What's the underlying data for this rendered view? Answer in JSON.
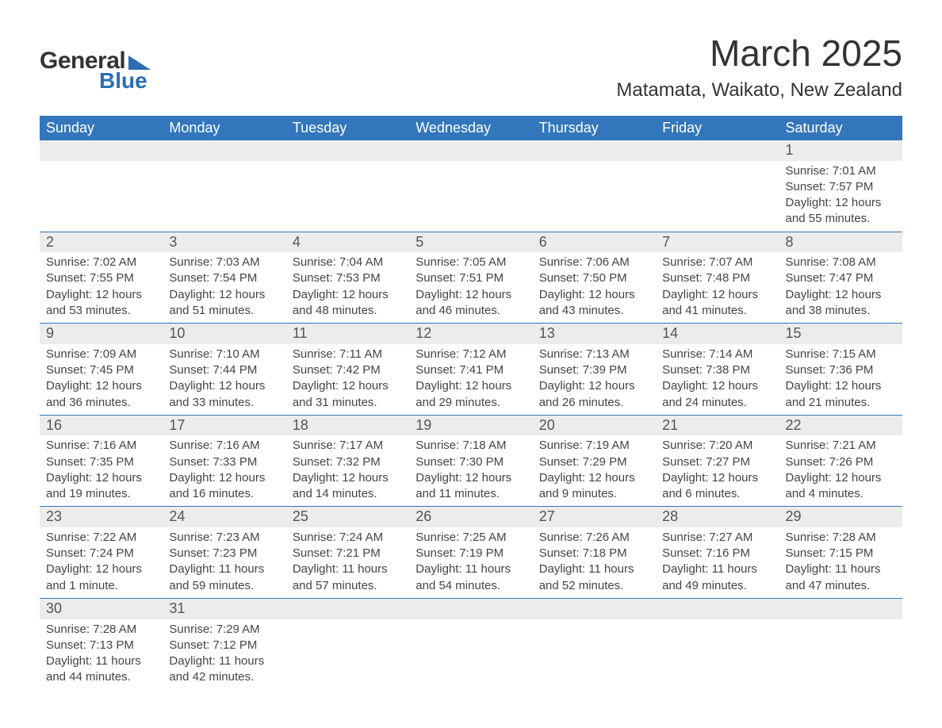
{
  "logo": {
    "text_main": "General",
    "text_sub": "Blue",
    "triangle_color": "#2a6db5"
  },
  "title": "March 2025",
  "location": "Matamata, Waikato, New Zealand",
  "colors": {
    "header_bg": "#3376bb",
    "header_text": "#ffffff",
    "daynum_bg": "#ececec",
    "row_border": "#3376bb",
    "body_text": "#444444",
    "page_bg": "#ffffff"
  },
  "typography": {
    "title_fontsize": 46,
    "location_fontsize": 24,
    "header_fontsize": 18,
    "daynum_fontsize": 18,
    "body_fontsize": 15
  },
  "weekdays": [
    "Sunday",
    "Monday",
    "Tuesday",
    "Wednesday",
    "Thursday",
    "Friday",
    "Saturday"
  ],
  "weeks": [
    [
      null,
      null,
      null,
      null,
      null,
      null,
      {
        "n": "1",
        "sunrise": "Sunrise: 7:01 AM",
        "sunset": "Sunset: 7:57 PM",
        "daylight": "Daylight: 12 hours and 55 minutes."
      }
    ],
    [
      {
        "n": "2",
        "sunrise": "Sunrise: 7:02 AM",
        "sunset": "Sunset: 7:55 PM",
        "daylight": "Daylight: 12 hours and 53 minutes."
      },
      {
        "n": "3",
        "sunrise": "Sunrise: 7:03 AM",
        "sunset": "Sunset: 7:54 PM",
        "daylight": "Daylight: 12 hours and 51 minutes."
      },
      {
        "n": "4",
        "sunrise": "Sunrise: 7:04 AM",
        "sunset": "Sunset: 7:53 PM",
        "daylight": "Daylight: 12 hours and 48 minutes."
      },
      {
        "n": "5",
        "sunrise": "Sunrise: 7:05 AM",
        "sunset": "Sunset: 7:51 PM",
        "daylight": "Daylight: 12 hours and 46 minutes."
      },
      {
        "n": "6",
        "sunrise": "Sunrise: 7:06 AM",
        "sunset": "Sunset: 7:50 PM",
        "daylight": "Daylight: 12 hours and 43 minutes."
      },
      {
        "n": "7",
        "sunrise": "Sunrise: 7:07 AM",
        "sunset": "Sunset: 7:48 PM",
        "daylight": "Daylight: 12 hours and 41 minutes."
      },
      {
        "n": "8",
        "sunrise": "Sunrise: 7:08 AM",
        "sunset": "Sunset: 7:47 PM",
        "daylight": "Daylight: 12 hours and 38 minutes."
      }
    ],
    [
      {
        "n": "9",
        "sunrise": "Sunrise: 7:09 AM",
        "sunset": "Sunset: 7:45 PM",
        "daylight": "Daylight: 12 hours and 36 minutes."
      },
      {
        "n": "10",
        "sunrise": "Sunrise: 7:10 AM",
        "sunset": "Sunset: 7:44 PM",
        "daylight": "Daylight: 12 hours and 33 minutes."
      },
      {
        "n": "11",
        "sunrise": "Sunrise: 7:11 AM",
        "sunset": "Sunset: 7:42 PM",
        "daylight": "Daylight: 12 hours and 31 minutes."
      },
      {
        "n": "12",
        "sunrise": "Sunrise: 7:12 AM",
        "sunset": "Sunset: 7:41 PM",
        "daylight": "Daylight: 12 hours and 29 minutes."
      },
      {
        "n": "13",
        "sunrise": "Sunrise: 7:13 AM",
        "sunset": "Sunset: 7:39 PM",
        "daylight": "Daylight: 12 hours and 26 minutes."
      },
      {
        "n": "14",
        "sunrise": "Sunrise: 7:14 AM",
        "sunset": "Sunset: 7:38 PM",
        "daylight": "Daylight: 12 hours and 24 minutes."
      },
      {
        "n": "15",
        "sunrise": "Sunrise: 7:15 AM",
        "sunset": "Sunset: 7:36 PM",
        "daylight": "Daylight: 12 hours and 21 minutes."
      }
    ],
    [
      {
        "n": "16",
        "sunrise": "Sunrise: 7:16 AM",
        "sunset": "Sunset: 7:35 PM",
        "daylight": "Daylight: 12 hours and 19 minutes."
      },
      {
        "n": "17",
        "sunrise": "Sunrise: 7:16 AM",
        "sunset": "Sunset: 7:33 PM",
        "daylight": "Daylight: 12 hours and 16 minutes."
      },
      {
        "n": "18",
        "sunrise": "Sunrise: 7:17 AM",
        "sunset": "Sunset: 7:32 PM",
        "daylight": "Daylight: 12 hours and 14 minutes."
      },
      {
        "n": "19",
        "sunrise": "Sunrise: 7:18 AM",
        "sunset": "Sunset: 7:30 PM",
        "daylight": "Daylight: 12 hours and 11 minutes."
      },
      {
        "n": "20",
        "sunrise": "Sunrise: 7:19 AM",
        "sunset": "Sunset: 7:29 PM",
        "daylight": "Daylight: 12 hours and 9 minutes."
      },
      {
        "n": "21",
        "sunrise": "Sunrise: 7:20 AM",
        "sunset": "Sunset: 7:27 PM",
        "daylight": "Daylight: 12 hours and 6 minutes."
      },
      {
        "n": "22",
        "sunrise": "Sunrise: 7:21 AM",
        "sunset": "Sunset: 7:26 PM",
        "daylight": "Daylight: 12 hours and 4 minutes."
      }
    ],
    [
      {
        "n": "23",
        "sunrise": "Sunrise: 7:22 AM",
        "sunset": "Sunset: 7:24 PM",
        "daylight": "Daylight: 12 hours and 1 minute."
      },
      {
        "n": "24",
        "sunrise": "Sunrise: 7:23 AM",
        "sunset": "Sunset: 7:23 PM",
        "daylight": "Daylight: 11 hours and 59 minutes."
      },
      {
        "n": "25",
        "sunrise": "Sunrise: 7:24 AM",
        "sunset": "Sunset: 7:21 PM",
        "daylight": "Daylight: 11 hours and 57 minutes."
      },
      {
        "n": "26",
        "sunrise": "Sunrise: 7:25 AM",
        "sunset": "Sunset: 7:19 PM",
        "daylight": "Daylight: 11 hours and 54 minutes."
      },
      {
        "n": "27",
        "sunrise": "Sunrise: 7:26 AM",
        "sunset": "Sunset: 7:18 PM",
        "daylight": "Daylight: 11 hours and 52 minutes."
      },
      {
        "n": "28",
        "sunrise": "Sunrise: 7:27 AM",
        "sunset": "Sunset: 7:16 PM",
        "daylight": "Daylight: 11 hours and 49 minutes."
      },
      {
        "n": "29",
        "sunrise": "Sunrise: 7:28 AM",
        "sunset": "Sunset: 7:15 PM",
        "daylight": "Daylight: 11 hours and 47 minutes."
      }
    ],
    [
      {
        "n": "30",
        "sunrise": "Sunrise: 7:28 AM",
        "sunset": "Sunset: 7:13 PM",
        "daylight": "Daylight: 11 hours and 44 minutes."
      },
      {
        "n": "31",
        "sunrise": "Sunrise: 7:29 AM",
        "sunset": "Sunset: 7:12 PM",
        "daylight": "Daylight: 11 hours and 42 minutes."
      },
      null,
      null,
      null,
      null,
      null
    ]
  ]
}
